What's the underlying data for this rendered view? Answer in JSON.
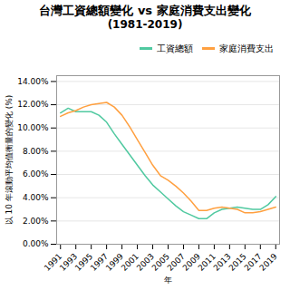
{
  "chart_data": {
    "type": "line",
    "title": "台灣工資總額變化 vs 家庭消費支出變化",
    "subtitle": "(1981-2019)",
    "x_label": "年",
    "y_label": "以 10 年滾動平均值衡量的變化 (%)",
    "x": [
      1991,
      1992,
      1993,
      1994,
      1995,
      1996,
      1997,
      1998,
      1999,
      2000,
      2001,
      2002,
      2003,
      2004,
      2005,
      2006,
      2007,
      2008,
      2009,
      2010,
      2011,
      2012,
      2013,
      2014,
      2015,
      2016,
      2017,
      2018,
      2019
    ],
    "series": [
      {
        "name": "工資總額",
        "color": "#50C9A0",
        "values": [
          0.113,
          0.117,
          0.114,
          0.114,
          0.114,
          0.111,
          0.105,
          0.095,
          0.086,
          0.077,
          0.068,
          0.059,
          0.051,
          0.045,
          0.039,
          0.033,
          0.028,
          0.025,
          0.022,
          0.022,
          0.027,
          0.03,
          0.031,
          0.032,
          0.031,
          0.03,
          0.03,
          0.034,
          0.041
        ]
      },
      {
        "name": "家庭消費支出",
        "color": "#FFA040",
        "values": [
          0.11,
          0.113,
          0.115,
          0.118,
          0.12,
          0.121,
          0.122,
          0.118,
          0.111,
          0.101,
          0.09,
          0.079,
          0.068,
          0.059,
          0.055,
          0.05,
          0.044,
          0.037,
          0.029,
          0.029,
          0.031,
          0.032,
          0.031,
          0.03,
          0.027,
          0.027,
          0.028,
          0.03,
          0.032
        ]
      }
    ],
    "xlim": [
      1990.5,
      2019.5
    ],
    "xticks": [
      1991,
      1993,
      1995,
      1997,
      1999,
      2001,
      2003,
      2005,
      2007,
      2009,
      2011,
      2013,
      2015,
      2017,
      2019
    ],
    "ylim": [
      0.0,
      0.145
    ],
    "yticks": [
      {
        "value": 0.0,
        "label": "0.00%"
      },
      {
        "value": 0.02,
        "label": "2.00%"
      },
      {
        "value": 0.04,
        "label": "4.00%"
      },
      {
        "value": 0.06,
        "label": "6.00%"
      },
      {
        "value": 0.08,
        "label": "8.00%"
      },
      {
        "value": 0.1,
        "label": "10.00%"
      },
      {
        "value": 0.12,
        "label": "12.00%"
      },
      {
        "value": 0.14,
        "label": "14.00%"
      }
    ],
    "grid": "y",
    "legend": "right"
  }
}
